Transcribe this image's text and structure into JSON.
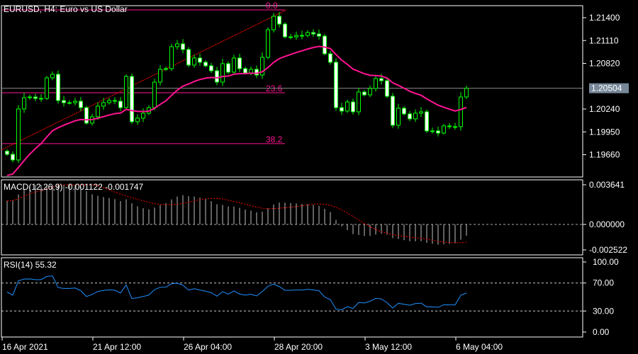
{
  "window": {
    "title": "EURUSD, H4:  Euro vs US Dollar"
  },
  "colors": {
    "background": "#000000",
    "candle": "#00ff00",
    "bear_body": "#ffffff",
    "moving_average": "#ff1493",
    "fibonacci": "#ff1493",
    "trendline": "#ff0000",
    "macd_histogram": "#c0c0c0",
    "macd_signal": "#ff0000",
    "rsi_line": "#1e90ff",
    "current_price_bg": "#778899"
  },
  "chart_data": [
    {
      "type": "candlestick",
      "symbol": "EURUSD",
      "timeframe": "H4",
      "ylim": [
        1.1945,
        1.2155
      ],
      "y_ticks": [
        "1.21400",
        "1.21110",
        "1.20820",
        "1.20240",
        "1.19950",
        "1.19660"
      ],
      "y_tick_values": [
        1.214,
        1.2111,
        1.2082,
        1.2024,
        1.1995,
        1.1966
      ],
      "current_price": "1.20504",
      "current_price_value": 1.20504,
      "x_ticks": [
        "16 Apr 2021",
        "21 Apr 12:00",
        "26 Apr 04:00",
        "28 Apr 20:00",
        "3 May 12:00",
        "6 May 04:00"
      ],
      "x_tick_bar_index": [
        0,
        16,
        32,
        48,
        64,
        80
      ],
      "close": [
        1.19665,
        1.19593,
        1.20241,
        1.20384,
        1.20393,
        1.20375,
        1.20375,
        1.20636,
        1.20681,
        1.20348,
        1.20321,
        1.20321,
        1.20339,
        1.20258,
        1.20061,
        1.20142,
        1.20277,
        1.20321,
        1.20348,
        1.20339,
        1.20258,
        1.20654,
        1.20079,
        1.20124,
        1.20187,
        1.20258,
        1.20582,
        1.20744,
        1.20753,
        1.21032,
        1.21068,
        1.20996,
        1.20798,
        1.20888,
        1.20834,
        1.20789,
        1.20726,
        1.20582,
        1.20816,
        1.20708,
        1.20888,
        1.20753,
        1.20699,
        1.20744,
        1.20672,
        1.20897,
        1.21247,
        1.21418,
        1.21319,
        1.21157,
        1.21157,
        1.21175,
        1.21175,
        1.21211,
        1.21193,
        1.21166,
        1.20942,
        1.20834,
        1.20258,
        1.20214,
        1.2033,
        1.20205,
        1.20456,
        1.2042,
        1.20501,
        1.20627,
        1.206,
        1.20402,
        1.20034,
        1.2025,
        1.20178,
        1.20115,
        1.20187,
        1.20205,
        1.19962,
        1.19962,
        1.19935,
        1.20025,
        1.20016,
        1.20016,
        1.20393,
        1.20504
      ],
      "fibonacci": {
        "levels": [
          {
            "label": "0.0",
            "price": 1.21499
          },
          {
            "label": "23.6",
            "price": 1.20447
          },
          {
            "label": "38.2",
            "price": 1.198
          }
        ],
        "trendline_from": {
          "bar": -1,
          "price": 1.1972
        },
        "trendline_to": {
          "bar": 49,
          "price": 1.21499
        }
      }
    },
    {
      "type": "bar",
      "name": "MACD(12,26,9)",
      "label": "MACD(12,26,9) -0.001122 -0.001747",
      "ylim": [
        -0.002522,
        0.003641
      ],
      "y_ticks": [
        "0.003641",
        "0.000000",
        "-0.002522"
      ],
      "y_tick_values": [
        0.003641,
        0,
        -0.002522
      ]
    },
    {
      "type": "line",
      "name": "RSI(14)",
      "label": "RSI(14) 55.32",
      "ylim": [
        0,
        100
      ],
      "y_ticks": [
        "100.00",
        "70.00",
        "30.00",
        "0.00"
      ],
      "y_tick_values": [
        100,
        70,
        30,
        0
      ],
      "levels": [
        70,
        30
      ]
    }
  ]
}
